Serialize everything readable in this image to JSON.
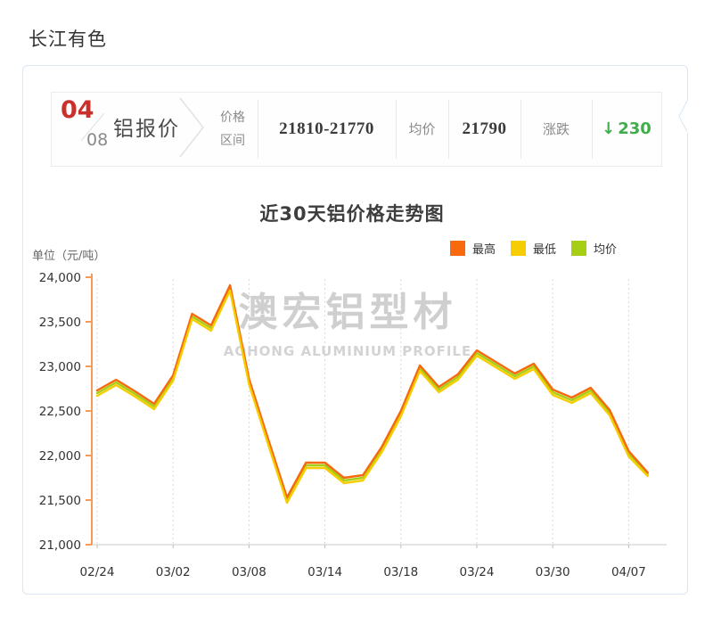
{
  "page": {
    "title": "长江有色"
  },
  "quote": {
    "date_month": "04",
    "date_day": "08",
    "product": "铝报价",
    "range_label_line1": "价格",
    "range_label_line2": "区间",
    "range_value": "21810-21770",
    "avg_label": "均价",
    "avg_value": "21790",
    "change_label": "涨跌",
    "change_arrow": "↓",
    "change_value": "230",
    "change_direction": "down"
  },
  "watermark": {
    "cn": "澳宏铝型材",
    "en": "AOHONG ALUMINIUM PROFILE"
  },
  "colors": {
    "accent_red": "#c9302c",
    "change_green": "#3fae4a",
    "axis_orange": "#f79a57",
    "panel_border": "#d9e6f3",
    "grid_gray": "#d9d9d9",
    "watermark_gray": "#c4c4c4"
  },
  "chart_data": {
    "type": "line",
    "title": "近30天铝价格走势图",
    "unit_label": "单位（元/吨）",
    "ylabel": "元/吨",
    "ylim": [
      21000,
      24000
    ],
    "grid": "vertical-dotted",
    "legend_position": "top-right",
    "axis_color": "#f79a57",
    "y_ticks": [
      24000,
      23500,
      23000,
      22500,
      22000,
      21500,
      21000
    ],
    "y_tick_labels": [
      "24,000",
      "23,500",
      "23,000",
      "22,500",
      "22,000",
      "21,500",
      "21,000"
    ],
    "x_tick_labels": [
      "02/24",
      "03/02",
      "03/08",
      "03/14",
      "03/18",
      "03/24",
      "03/30",
      "04/07"
    ],
    "x_tick_indices": [
      0,
      4,
      8,
      12,
      16,
      20,
      24,
      28
    ],
    "n_points": 30,
    "series": [
      {
        "name": "最高",
        "color": "#f8690e",
        "values": [
          22730,
          22850,
          22720,
          22580,
          22900,
          23590,
          23460,
          23910,
          22860,
          22190,
          21530,
          21920,
          21920,
          21750,
          21780,
          22100,
          22500,
          23010,
          22770,
          22910,
          23180,
          23050,
          22920,
          23030,
          22740,
          22650,
          22760,
          22510,
          22050,
          21810
        ]
      },
      {
        "name": "最低",
        "color": "#f5cd00",
        "values": [
          22670,
          22790,
          22660,
          22520,
          22840,
          23530,
          23400,
          23850,
          22800,
          22130,
          21470,
          21860,
          21860,
          21690,
          21720,
          22040,
          22440,
          22950,
          22710,
          22850,
          23120,
          22990,
          22860,
          22970,
          22680,
          22590,
          22700,
          22450,
          21990,
          21770
        ]
      },
      {
        "name": "均价",
        "color": "#a6ce14",
        "values": [
          22700,
          22820,
          22690,
          22550,
          22870,
          23560,
          23430,
          23880,
          22830,
          22160,
          21500,
          21890,
          21890,
          21720,
          21750,
          22070,
          22470,
          22980,
          22740,
          22880,
          23150,
          23020,
          22890,
          23000,
          22710,
          22620,
          22730,
          22480,
          22020,
          21790
        ]
      }
    ]
  }
}
